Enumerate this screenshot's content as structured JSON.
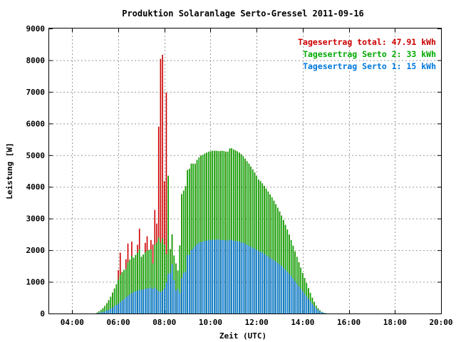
{
  "chart_data": {
    "type": "bar",
    "title": "Produktion Solaranlage Serto-Gressel 2011-09-16",
    "xlabel": "Zeit (UTC)",
    "ylabel": "Leistung [W]",
    "xlim_hours": [
      3.0,
      20.0
    ],
    "ylim": [
      0,
      9000
    ],
    "xticks": [
      4,
      6,
      8,
      10,
      12,
      14,
      16,
      18,
      20
    ],
    "xtick_labels": [
      "04:00",
      "06:00",
      "08:00",
      "10:00",
      "12:00",
      "14:00",
      "16:00",
      "18:00",
      "20:00"
    ],
    "yticks": [
      0,
      1000,
      2000,
      3000,
      4000,
      5000,
      6000,
      7000,
      8000,
      9000
    ],
    "ytick_labels": [
      "0",
      "1000",
      "2000",
      "3000",
      "4000",
      "5000",
      "6000",
      "7000",
      "8000",
      "9000"
    ],
    "grid": true,
    "legend_position": "top-right",
    "stacked": true,
    "colors": {
      "total": "#cc0000",
      "serto2": "#00aa00",
      "serto1": "#0077dd"
    },
    "legend": [
      {
        "key": "total",
        "label": "Tagesertrag total: 47.91 kWh"
      },
      {
        "key": "serto2",
        "label": "Tagesertrag Serto 2: 33 kWh"
      },
      {
        "key": "serto1",
        "label": "Tagesertrag Serto 1: 15 kWh"
      }
    ],
    "time_start": "05:00",
    "interval_minutes": 5,
    "serto1": [
      0,
      10,
      20,
      35,
      50,
      70,
      95,
      120,
      150,
      190,
      230,
      270,
      310,
      360,
      410,
      460,
      510,
      560,
      600,
      640,
      680,
      700,
      720,
      750,
      740,
      760,
      780,
      790,
      800,
      820,
      780,
      820,
      760,
      700,
      680,
      720,
      800,
      980,
      1250,
      1280,
      1550,
      1050,
      730,
      780,
      650,
      1120,
      1280,
      1320,
      1850,
      1850,
      2000,
      2050,
      2130,
      2190,
      2230,
      2250,
      2270,
      2290,
      2300,
      2310,
      2320,
      2330,
      2330,
      2330,
      2340,
      2330,
      2320,
      2320,
      2310,
      2300,
      2330,
      2320,
      2300,
      2290,
      2280,
      2270,
      2250,
      2230,
      2200,
      2170,
      2140,
      2110,
      2080,
      2050,
      2010,
      1970,
      1950,
      1920,
      1880,
      1840,
      1800,
      1760,
      1720,
      1680,
      1640,
      1600,
      1550,
      1500,
      1440,
      1380,
      1320,
      1250,
      1180,
      1100,
      1020,
      940,
      860,
      780,
      700,
      620,
      540,
      460,
      380,
      300,
      230,
      160,
      110,
      70,
      40,
      20,
      10
    ],
    "serto2": [
      0,
      20,
      50,
      80,
      120,
      170,
      230,
      300,
      380,
      470,
      560,
      650,
      760,
      860,
      900,
      920,
      900,
      1050,
      1100,
      1180,
      1080,
      1150,
      1200,
      1280,
      1050,
      1100,
      1150,
      1200,
      1210,
      1200,
      800,
      1350,
      1480,
      1700,
      1560,
      1650,
      1380,
      900,
      3100,
      750,
      950,
      780,
      850,
      580,
      1500,
      2650,
      2600,
      2700,
      2680,
      2720,
      2730,
      2680,
      2600,
      2660,
      2700,
      2740,
      2740,
      2760,
      2780,
      2800,
      2800,
      2810,
      2810,
      2810,
      2790,
      2800,
      2820,
      2810,
      2800,
      2810,
      2880,
      2900,
      2880,
      2860,
      2840,
      2810,
      2780,
      2740,
      2690,
      2640,
      2590,
      2530,
      2470,
      2400,
      2330,
      2260,
      2230,
      2190,
      2150,
      2100,
      2050,
      2000,
      1950,
      1880,
      1810,
      1740,
      1670,
      1590,
      1510,
      1420,
      1330,
      1240,
      1140,
      1040,
      940,
      850,
      760,
      670,
      580,
      500,
      420,
      340,
      270,
      200,
      140,
      90,
      55,
      30,
      15,
      5,
      0
    ],
    "total": [
      0,
      30,
      70,
      115,
      170,
      240,
      325,
      420,
      530,
      660,
      790,
      920,
      1070,
      1220,
      1310,
      1380,
      1410,
      1610,
      1700,
      1820,
      1760,
      1850,
      1920,
      2030,
      1790,
      1860,
      1930,
      1990,
      2010,
      2020,
      1580,
      2170,
      2240,
      2400,
      2240,
      2370,
      2180,
      1880,
      4350,
      2030,
      2500,
      1830,
      1580,
      1360,
      2150,
      3770,
      3880,
      4020,
      4530,
      4570,
      4730,
      4730,
      4730,
      4850,
      4930,
      4990,
      5010,
      5050,
      5080,
      5110,
      5120,
      5140,
      5140,
      5140,
      5130,
      5130,
      5140,
      5130,
      5110,
      5110,
      5210,
      5220,
      5180,
      5150,
      5120,
      5080,
      5030,
      4970,
      4890,
      4810,
      4730,
      4640,
      4550,
      4450,
      4340,
      4230,
      4180,
      4110,
      4030,
      3940,
      3850,
      3760,
      3670,
      3560,
      3450,
      3340,
      3220,
      3090,
      2950,
      2800,
      2650,
      2490,
      2320,
      2140,
      1960,
      1790,
      1620,
      1450,
      1280,
      1120,
      960,
      800,
      650,
      500,
      370,
      250,
      165,
      100,
      55,
      25,
      10
    ],
    "total_spike": [
      0,
      0,
      0,
      0,
      0,
      0,
      0,
      0,
      0,
      0,
      0,
      0,
      300,
      700,
      0,
      0,
      300,
      600,
      0,
      450,
      0,
      0,
      250,
      650,
      0,
      0,
      300,
      450,
      0,
      300,
      600,
      1100,
      600,
      3500,
      5800,
      5800,
      2000,
      5100,
      0,
      0,
      0,
      0,
      0,
      0,
      0,
      0,
      0,
      0,
      0,
      0,
      0,
      0,
      0,
      0,
      0,
      0,
      0,
      0,
      0,
      0,
      0,
      0,
      0,
      0,
      0,
      0,
      0,
      0,
      0,
      0,
      0,
      0,
      0,
      0,
      0,
      0,
      0,
      0,
      0,
      0,
      0,
      0,
      0,
      0,
      0,
      0,
      0,
      0,
      0,
      0,
      0,
      0,
      0,
      0,
      0,
      0,
      0,
      0,
      0,
      0,
      0,
      0,
      0,
      0,
      0,
      0,
      0,
      0,
      0,
      0,
      0,
      0,
      0,
      0,
      0,
      0,
      0,
      0,
      0,
      0,
      0
    ]
  }
}
